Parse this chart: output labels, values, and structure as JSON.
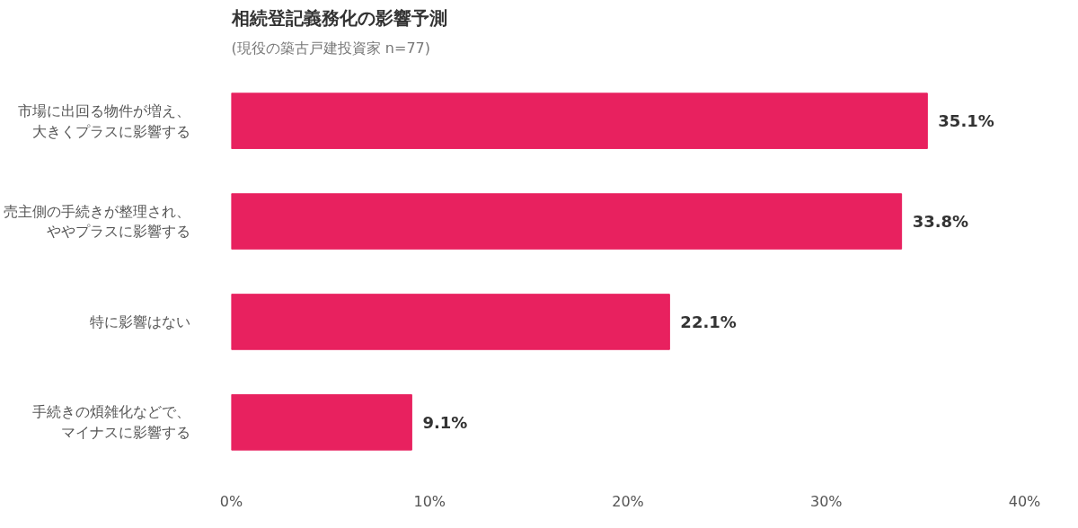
{
  "chart_data": {
    "type": "bar",
    "orientation": "horizontal",
    "title": "相続登記義務化の影響予測",
    "subtitle": "(現役の築古戸建投資家 n=77)",
    "categories": [
      "市場に出回る物件が増え、大きくプラスに影響する",
      "売主側の手続きが整理され、ややプラスに影響する",
      "特に影響はない",
      "手続きの煩雑化などで、マイナスに影響する"
    ],
    "values": [
      35.1,
      33.8,
      22.1,
      9.1
    ],
    "value_labels": [
      "35.1%",
      "33.8%",
      "22.1%",
      "9.1%"
    ],
    "color": "#e8215f",
    "xlim": [
      0,
      40
    ],
    "xticks": [
      {
        "value": 0,
        "label": "0%"
      },
      {
        "value": 10,
        "label": "10%"
      },
      {
        "value": 20,
        "label": "20%"
      },
      {
        "value": 30,
        "label": "30%"
      },
      {
        "value": 40,
        "label": "40%"
      }
    ],
    "grid": false
  }
}
